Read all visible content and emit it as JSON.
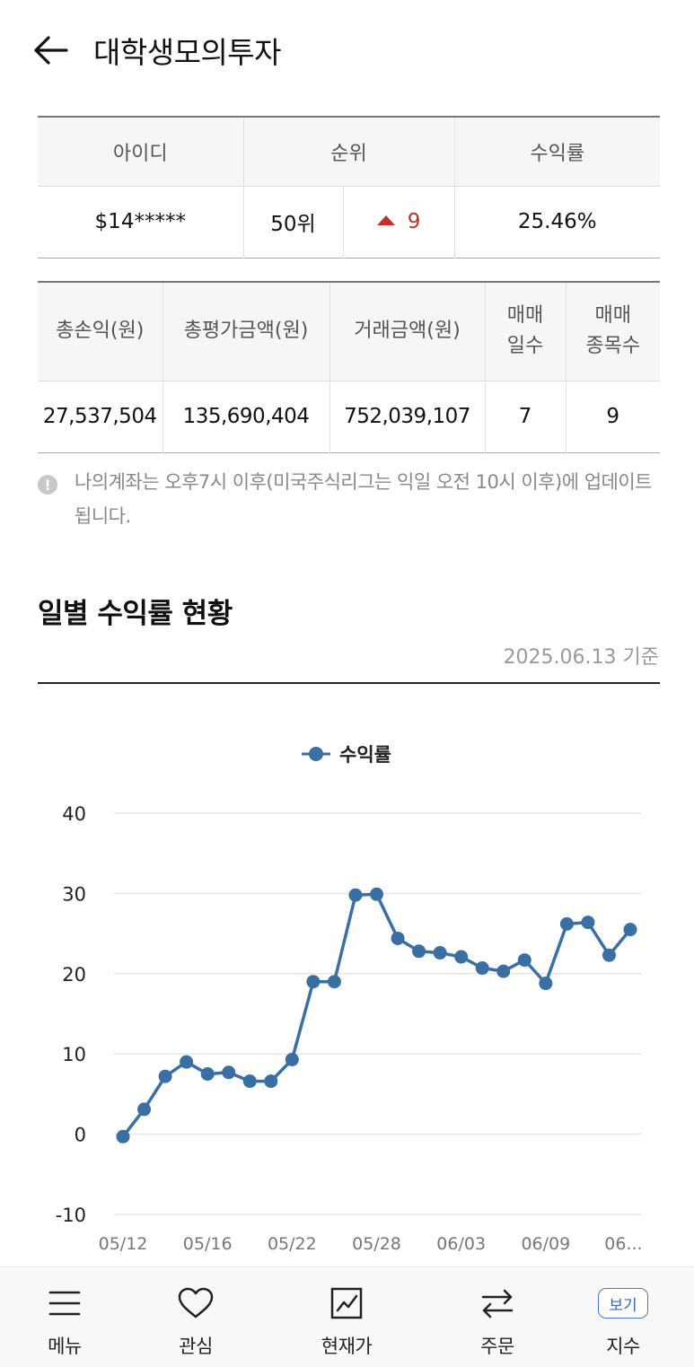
{
  "header": {
    "back_icon": "arrow-left-icon",
    "title": "대학생모의투자"
  },
  "summary": {
    "headers": [
      "아이디",
      "순위",
      "수익률"
    ],
    "id": "$14*****",
    "rank": "50위",
    "rank_change": "9",
    "rank_change_direction": "up",
    "return_rate": "25.46%"
  },
  "stats": {
    "headers": [
      "총손익(원)",
      "총평가금액(원)",
      "거래금액(원)",
      "매매\n일수",
      "매매\n종목수"
    ],
    "values": [
      "27,537,504",
      "135,690,404",
      "752,039,107",
      "7",
      "9"
    ]
  },
  "notice": {
    "icon": "exclamation-circle-icon",
    "text": "나의계좌는 오후7시 이후(미국주식리그는 익일 오전 10시 이후)에 업데이트됩니다."
  },
  "daily_section": {
    "title": "일별 수익률 현황",
    "as_of": "2025.06.13 기준"
  },
  "chart_data": {
    "type": "line",
    "x": [
      "05/12",
      "05/13",
      "05/14",
      "05/15",
      "05/16",
      "05/19",
      "05/20",
      "05/21",
      "05/22",
      "05/23",
      "05/26",
      "05/27",
      "05/28",
      "05/29",
      "05/30",
      "06/02",
      "06/03",
      "06/04",
      "06/05",
      "06/06",
      "06/09",
      "06/10",
      "06/11",
      "06/12",
      "06/13"
    ],
    "x_tick_labels": [
      "05/12",
      "05/16",
      "05/22",
      "05/28",
      "06/03",
      "06/09",
      "06..."
    ],
    "series": [
      {
        "name": "수익률",
        "color": "#3a6fa4",
        "values": [
          -0.3,
          3.1,
          7.2,
          9.0,
          7.5,
          7.7,
          6.6,
          6.6,
          9.3,
          19.0,
          19.0,
          29.8,
          29.9,
          24.4,
          22.8,
          22.6,
          22.1,
          20.7,
          20.3,
          21.7,
          18.8,
          26.2,
          26.4,
          22.3,
          25.5
        ]
      }
    ],
    "y_ticks": [
      "40",
      "30",
      "20",
      "10",
      "0",
      "-10"
    ],
    "ylim": [
      -10,
      40
    ],
    "grid": true,
    "legend": "top-center"
  },
  "bottom_nav": [
    {
      "label": "메뉴",
      "icon": "hamburger-menu-icon"
    },
    {
      "label": "관심",
      "icon": "heart-icon"
    },
    {
      "label": "현재가",
      "icon": "line-chart-icon"
    },
    {
      "label": "주문",
      "icon": "swap-arrows-icon"
    },
    {
      "label": "지수",
      "icon": "view-badge-icon",
      "badge": "보기"
    }
  ]
}
